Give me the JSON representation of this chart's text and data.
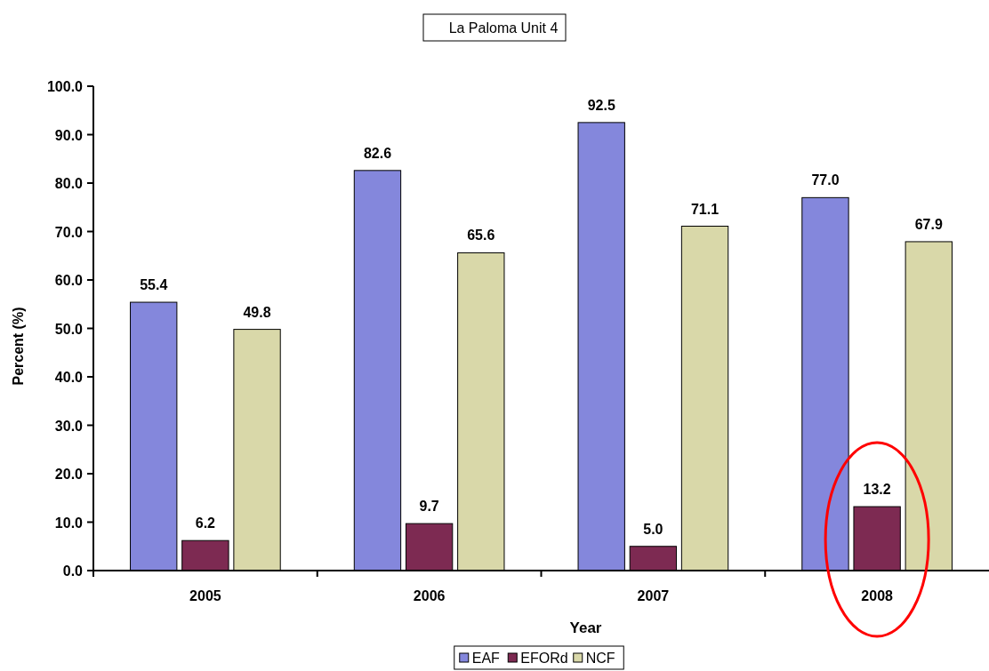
{
  "chart_data": {
    "type": "bar",
    "title": "La Paloma Unit 4",
    "xlabel": "Year",
    "ylabel": "Percent (%)",
    "categories": [
      "2005",
      "2006",
      "2007",
      "2008"
    ],
    "series": [
      {
        "name": "EAF",
        "color": "#8487dc",
        "values": [
          55.4,
          82.6,
          92.5,
          77.0
        ]
      },
      {
        "name": "EFORd",
        "color": "#7d2a52",
        "values": [
          6.2,
          9.7,
          5.0,
          13.2
        ]
      },
      {
        "name": "NCF",
        "color": "#d9d8a9",
        "values": [
          49.8,
          65.6,
          71.1,
          67.9
        ]
      }
    ],
    "ylim": [
      0,
      100
    ],
    "yticks": [
      {
        "value": 0,
        "label": "0.0"
      },
      {
        "value": 10,
        "label": "10.0"
      },
      {
        "value": 20,
        "label": "20.0"
      },
      {
        "value": 30,
        "label": "30.0"
      },
      {
        "value": 40,
        "label": "40.0"
      },
      {
        "value": 50,
        "label": "50.0"
      },
      {
        "value": 60,
        "label": "60.0"
      },
      {
        "value": 70,
        "label": "70.0"
      },
      {
        "value": 80,
        "label": "80.0"
      },
      {
        "value": 90,
        "label": "90.0"
      },
      {
        "value": 100,
        "label": "100.0"
      }
    ],
    "value_labels": [
      [
        "55.4",
        "82.6",
        "92.5",
        "77.0"
      ],
      [
        "6.2",
        "9.7",
        "5.0",
        "13.2"
      ],
      [
        "49.8",
        "65.6",
        "71.1",
        "67.9"
      ]
    ],
    "legend": "bottom",
    "grid": false
  }
}
